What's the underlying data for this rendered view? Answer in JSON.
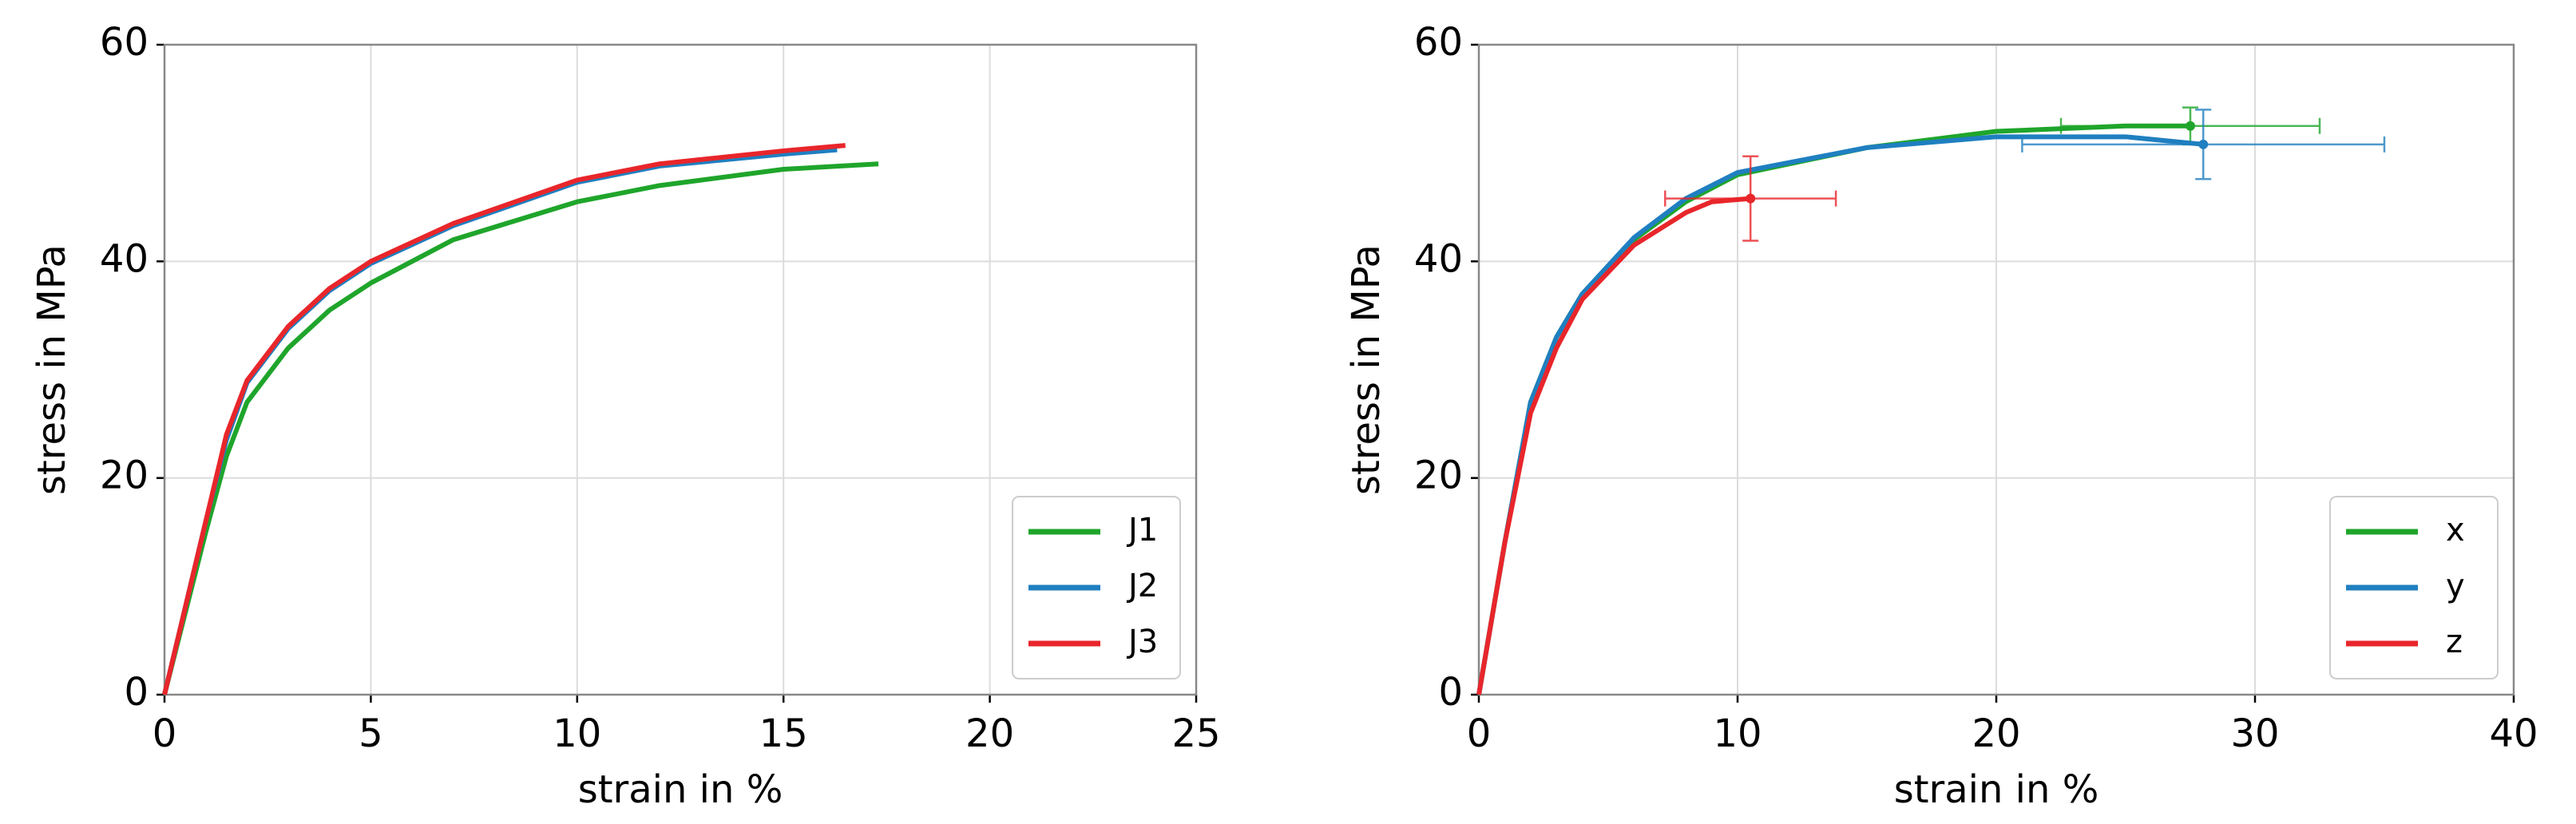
{
  "chart_data": [
    {
      "type": "line",
      "xlabel": "strain in %",
      "ylabel": "stress in MPa",
      "xlim": [
        0,
        25
      ],
      "ylim": [
        0,
        60
      ],
      "xticks": [
        0,
        5,
        10,
        15,
        20,
        25
      ],
      "yticks": [
        0,
        20,
        40,
        60
      ],
      "grid": true,
      "legend": "lower right",
      "series": [
        {
          "name": "J1",
          "color": "#1fa52b",
          "x": [
            0,
            1,
            1.5,
            2,
            3,
            4,
            5,
            7,
            10,
            12,
            15,
            17.3
          ],
          "values": [
            0,
            15,
            22,
            27,
            32,
            35.5,
            38,
            42,
            45.5,
            47,
            48.5,
            49
          ]
        },
        {
          "name": "J2",
          "color": "#1f7fc0",
          "x": [
            0,
            1,
            1.5,
            2,
            3,
            4,
            5,
            7,
            10,
            12,
            15,
            16.3
          ],
          "values": [
            0,
            16,
            23.5,
            28.8,
            33.8,
            37.3,
            39.8,
            43.3,
            47.3,
            48.8,
            49.9,
            50.3
          ]
        },
        {
          "name": "J3",
          "color": "#e8262b",
          "x": [
            0,
            1,
            1.5,
            2,
            3,
            4,
            5,
            7,
            10,
            12,
            15,
            16.5
          ],
          "values": [
            0,
            16,
            24,
            29,
            34,
            37.5,
            40,
            43.5,
            47.5,
            49,
            50.2,
            50.7
          ]
        }
      ]
    },
    {
      "type": "line",
      "xlabel": "strain in %",
      "ylabel": "stress in MPa",
      "xlim": [
        0,
        40
      ],
      "ylim": [
        0,
        60
      ],
      "xticks": [
        0,
        10,
        20,
        30,
        40
      ],
      "yticks": [
        0,
        20,
        40,
        60
      ],
      "grid": true,
      "legend": "lower right",
      "series": [
        {
          "name": "x",
          "color": "#1fa52b",
          "x": [
            0,
            1,
            2,
            3,
            4,
            6,
            8,
            10,
            15,
            20,
            25,
            27.5
          ],
          "values": [
            0,
            14,
            27,
            33,
            37,
            42,
            45.5,
            48,
            50.5,
            52,
            52.5,
            52.5
          ],
          "error": {
            "xerr": 5,
            "yerr": 1.7
          }
        },
        {
          "name": "y",
          "color": "#1f7fc0",
          "x": [
            0,
            1,
            2,
            3,
            4,
            6,
            8,
            10,
            15,
            20,
            25,
            28
          ],
          "values": [
            0,
            14,
            27,
            33,
            37,
            42.2,
            45.8,
            48.2,
            50.5,
            51.5,
            51.5,
            50.8
          ],
          "error": {
            "xerr": 7,
            "yerr": 3.2
          }
        },
        {
          "name": "z",
          "color": "#e8262b",
          "x": [
            0,
            1,
            2,
            3,
            4,
            6,
            8,
            9,
            10.5
          ],
          "values": [
            0,
            14,
            26,
            32,
            36.5,
            41.5,
            44.5,
            45.5,
            45.8
          ],
          "error": {
            "xerr": 3.3,
            "yerr": 3.9
          }
        }
      ]
    }
  ]
}
